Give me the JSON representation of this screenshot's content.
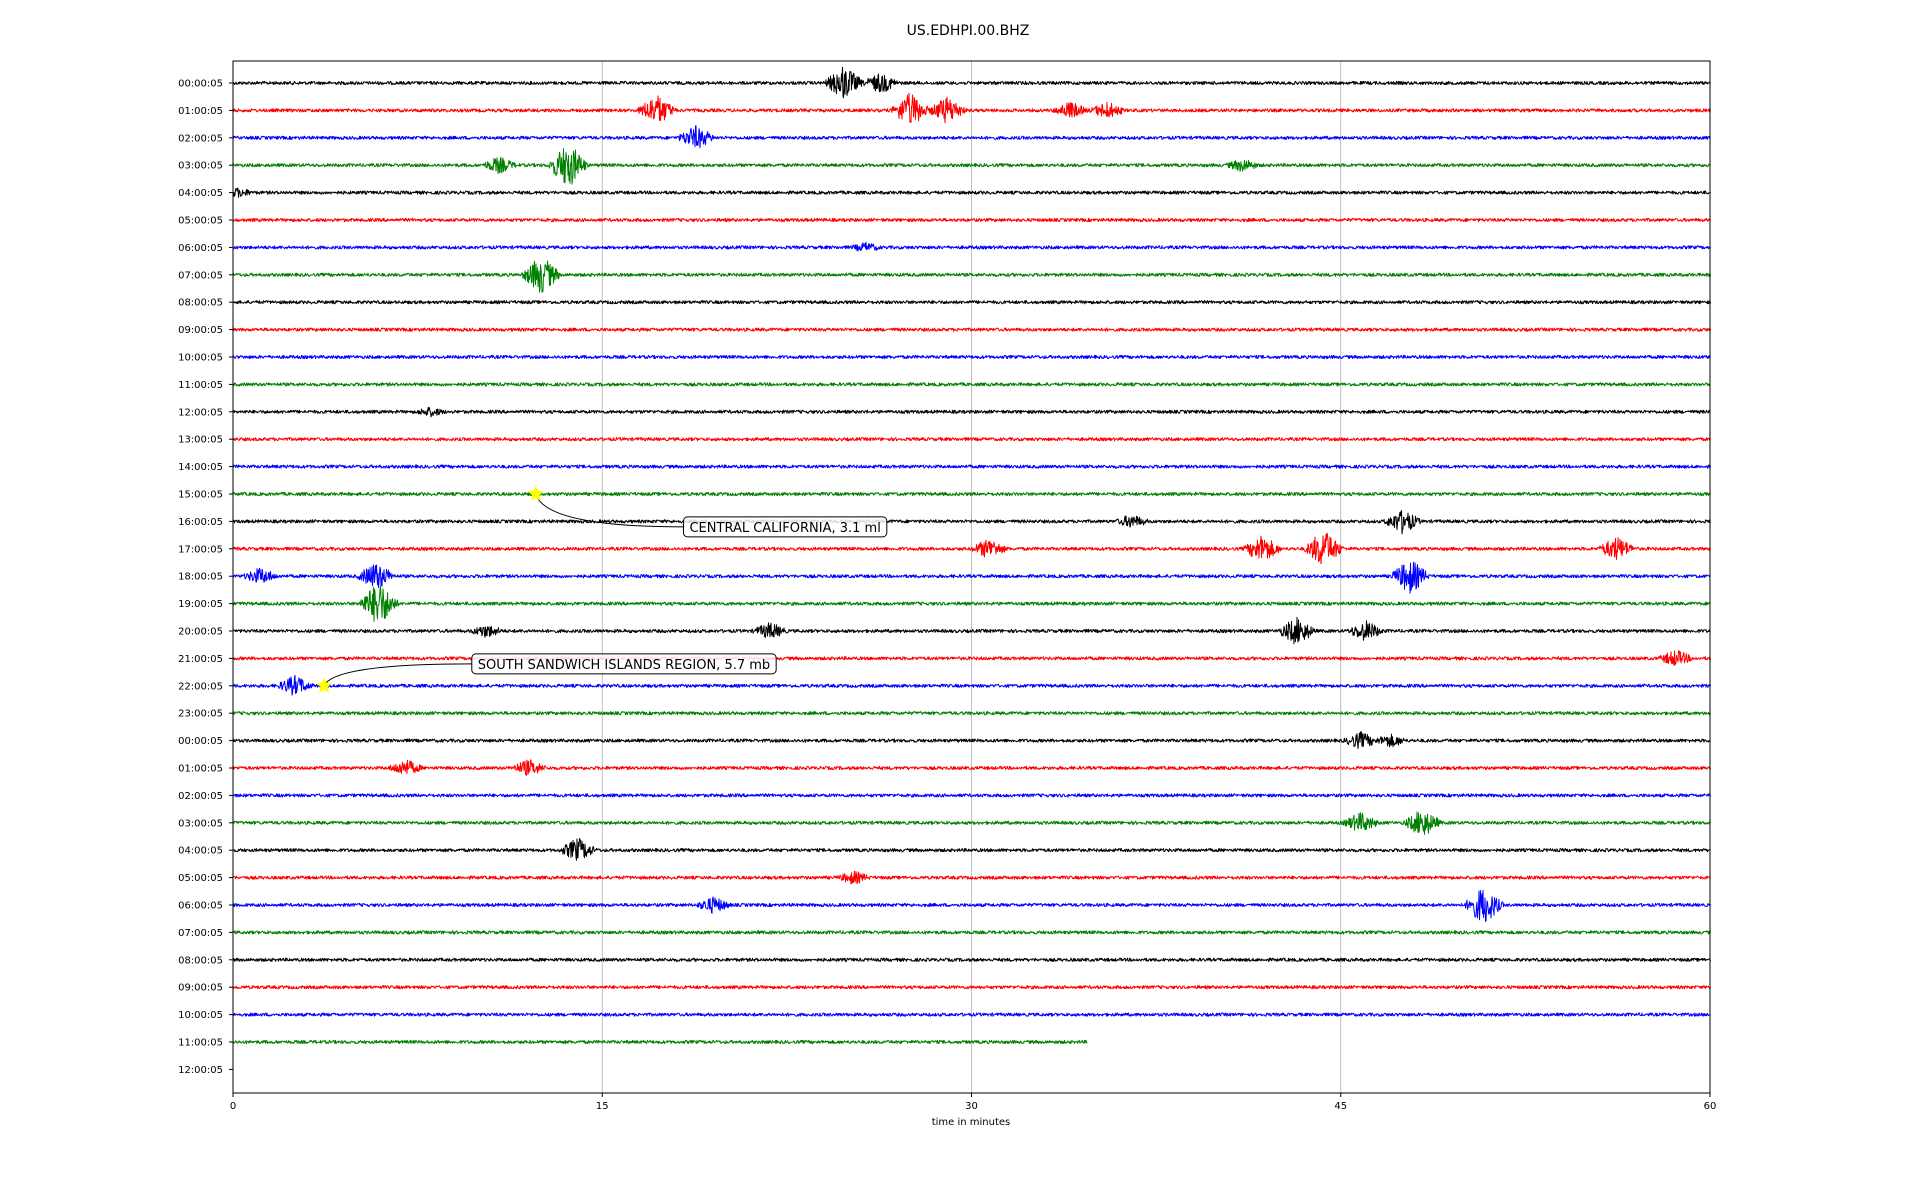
{
  "chart_data": {
    "type": "line",
    "title": "US.EDHPI.00.BHZ",
    "xlabel": "time in minutes",
    "ylabel": "",
    "xlim": [
      0,
      60
    ],
    "x_ticks": [
      "0",
      "15",
      "30",
      "45",
      "60"
    ],
    "x_tick_values": [
      0,
      15,
      30,
      45,
      60
    ],
    "grid": "vertical",
    "row_labels": [
      "00:00:05",
      "01:00:05",
      "02:00:05",
      "03:00:05",
      "04:00:05",
      "05:00:05",
      "06:00:05",
      "07:00:05",
      "08:00:05",
      "09:00:05",
      "10:00:05",
      "11:00:05",
      "12:00:05",
      "13:00:05",
      "14:00:05",
      "15:00:05",
      "16:00:05",
      "17:00:05",
      "18:00:05",
      "19:00:05",
      "20:00:05",
      "21:00:05",
      "22:00:05",
      "23:00:05",
      "00:00:05",
      "01:00:05",
      "02:00:05",
      "03:00:05",
      "04:00:05",
      "05:00:05",
      "06:00:05",
      "07:00:05",
      "08:00:05",
      "09:00:05",
      "10:00:05",
      "11:00:05",
      "12:00:05"
    ],
    "row_colors": [
      "#000000",
      "#ff0000",
      "#0000ff",
      "#008000"
    ],
    "rows_end_minutes": [
      60,
      60,
      60,
      60,
      60,
      60,
      60,
      60,
      60,
      60,
      60,
      60,
      60,
      60,
      60,
      60,
      60,
      60,
      60,
      60,
      60,
      60,
      60,
      60,
      60,
      60,
      60,
      60,
      60,
      60,
      60,
      60,
      60,
      60,
      60,
      34.7,
      0
    ],
    "events": [
      {
        "row": 15,
        "minute": 12.3,
        "label": "CENTRAL CALIFORNIA, 3.1 ml",
        "label_row": 16.2,
        "label_minute": 18.3
      },
      {
        "row": 22,
        "minute": 3.7,
        "label": "SOUTH SANDWICH ISLANDS REGION, 5.7 mb",
        "label_row": 21.2,
        "label_minute": 9.7
      }
    ],
    "bursts": [
      {
        "row": 0,
        "minute": 24.8,
        "amp": 1.0
      },
      {
        "row": 0,
        "minute": 26.3,
        "amp": 0.6
      },
      {
        "row": 1,
        "minute": 17.2,
        "amp": 0.9
      },
      {
        "row": 1,
        "minute": 27.5,
        "amp": 1.0
      },
      {
        "row": 1,
        "minute": 29.0,
        "amp": 0.8
      },
      {
        "row": 1,
        "minute": 34.0,
        "amp": 0.5
      },
      {
        "row": 1,
        "minute": 35.5,
        "amp": 0.5
      },
      {
        "row": 2,
        "minute": 18.8,
        "amp": 0.7
      },
      {
        "row": 3,
        "minute": 13.6,
        "amp": 1.3
      },
      {
        "row": 3,
        "minute": 10.8,
        "amp": 0.5
      },
      {
        "row": 3,
        "minute": 41.0,
        "amp": 0.4
      },
      {
        "row": 4,
        "minute": 0.2,
        "amp": 0.3
      },
      {
        "row": 6,
        "minute": 25.7,
        "amp": 0.3
      },
      {
        "row": 7,
        "minute": 12.5,
        "amp": 1.1
      },
      {
        "row": 12,
        "minute": 8.0,
        "amp": 0.3
      },
      {
        "row": 16,
        "minute": 47.5,
        "amp": 0.7
      },
      {
        "row": 16,
        "minute": 36.5,
        "amp": 0.4
      },
      {
        "row": 17,
        "minute": 44.3,
        "amp": 1.1
      },
      {
        "row": 17,
        "minute": 41.8,
        "amp": 0.8
      },
      {
        "row": 17,
        "minute": 56.2,
        "amp": 0.7
      },
      {
        "row": 17,
        "minute": 30.7,
        "amp": 0.6
      },
      {
        "row": 18,
        "minute": 47.8,
        "amp": 1.0
      },
      {
        "row": 18,
        "minute": 5.8,
        "amp": 0.8
      },
      {
        "row": 18,
        "minute": 1.1,
        "amp": 0.5
      },
      {
        "row": 19,
        "minute": 5.9,
        "amp": 1.3
      },
      {
        "row": 20,
        "minute": 43.2,
        "amp": 0.8
      },
      {
        "row": 20,
        "minute": 46.0,
        "amp": 0.6
      },
      {
        "row": 20,
        "minute": 21.8,
        "amp": 0.5
      },
      {
        "row": 20,
        "minute": 10.3,
        "amp": 0.4
      },
      {
        "row": 21,
        "minute": 58.6,
        "amp": 0.5
      },
      {
        "row": 22,
        "minute": 2.5,
        "amp": 0.6
      },
      {
        "row": 24,
        "minute": 45.8,
        "amp": 0.5
      },
      {
        "row": 24,
        "minute": 47.0,
        "amp": 0.4
      },
      {
        "row": 25,
        "minute": 7.0,
        "amp": 0.5
      },
      {
        "row": 25,
        "minute": 12.0,
        "amp": 0.5
      },
      {
        "row": 27,
        "minute": 45.8,
        "amp": 0.6
      },
      {
        "row": 27,
        "minute": 48.3,
        "amp": 0.8
      },
      {
        "row": 28,
        "minute": 14.0,
        "amp": 0.7
      },
      {
        "row": 29,
        "minute": 25.2,
        "amp": 0.4
      },
      {
        "row": 30,
        "minute": 50.8,
        "amp": 1.1
      },
      {
        "row": 30,
        "minute": 19.5,
        "amp": 0.5
      }
    ]
  }
}
